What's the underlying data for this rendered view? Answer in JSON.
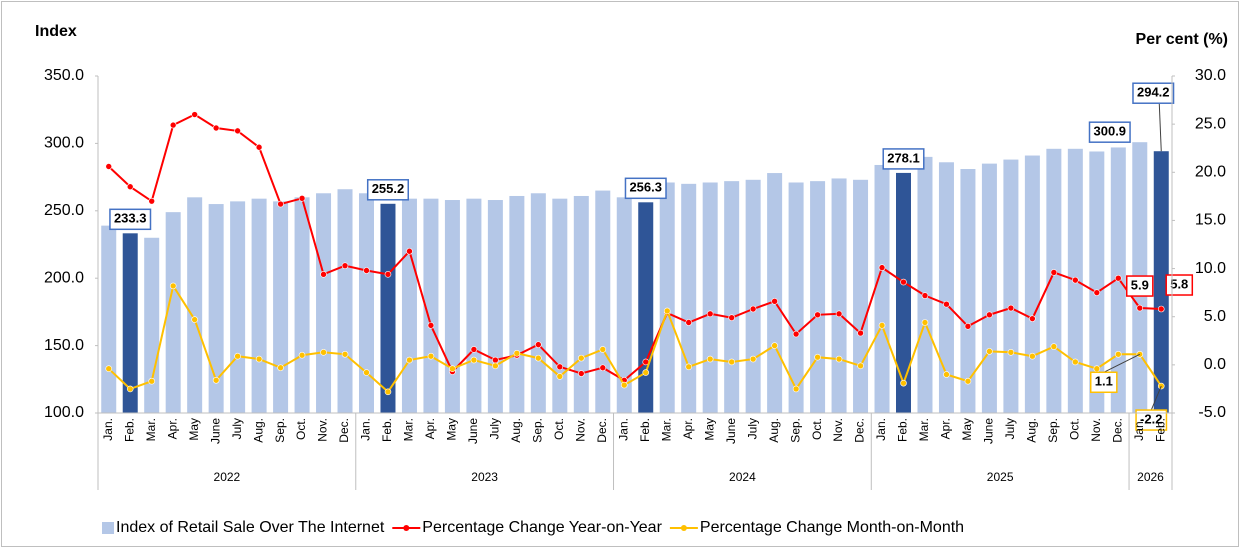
{
  "chart_data": {
    "type": "bar_line",
    "ylabel": "Index",
    "y2label": "Per cent (%)",
    "categories": [
      "Jan.",
      "Feb.",
      "Mar.",
      "Apr.",
      "May",
      "June",
      "July",
      "Aug.",
      "Sep.",
      "Oct.",
      "Nov.",
      "Dec.",
      "Jan.",
      "Feb.",
      "Mar.",
      "Apr.",
      "May",
      "June",
      "July",
      "Aug.",
      "Sep.",
      "Oct.",
      "Nov.",
      "Dec.",
      "Jan.",
      "Feb.",
      "Mar.",
      "Apr.",
      "May",
      "June",
      "July",
      "Aug.",
      "Sep.",
      "Oct.",
      "Nov.",
      "Dec.",
      "Jan.",
      "Feb.",
      "Mar.",
      "Apr.",
      "May",
      "June",
      "July",
      "Aug.",
      "Sep.",
      "Oct.",
      "Nov.",
      "Dec.",
      "Jan.",
      "Feb."
    ],
    "x_groups": [
      {
        "label": "2022",
        "size": 12
      },
      {
        "label": "2023",
        "size": 12
      },
      {
        "label": "2024",
        "size": 12
      },
      {
        "label": "2025",
        "size": 12
      },
      {
        "label": "2026",
        "size": 2
      }
    ],
    "ylim": [
      100,
      350
    ],
    "yticks": [
      {
        "value": 100,
        "label": "100.0"
      },
      {
        "value": 150,
        "label": "150.0"
      },
      {
        "value": 200,
        "label": "200.0"
      },
      {
        "value": 250,
        "label": "250.0"
      },
      {
        "value": 300,
        "label": "300.0"
      },
      {
        "value": 350,
        "label": "350.0"
      }
    ],
    "y2lim": [
      -5,
      30
    ],
    "y2ticks": [
      {
        "value": -5,
        "label": "-5.0"
      },
      {
        "value": 0,
        "label": "0.0"
      },
      {
        "value": 5,
        "label": "5.0"
      },
      {
        "value": 10,
        "label": "10.0"
      },
      {
        "value": 15,
        "label": "15.0"
      },
      {
        "value": 20,
        "label": "20.0"
      },
      {
        "value": 25,
        "label": "25.0"
      },
      {
        "value": 30,
        "label": "30.0"
      }
    ],
    "legend": "bottom",
    "series": [
      {
        "name": "Index of Retail Sale Over The Internet",
        "type": "bar",
        "color": "#b4c7e7",
        "highlight_color": "#2f5597",
        "values": [
          239,
          233.3,
          230,
          249,
          260,
          255,
          257,
          259,
          257,
          260,
          263,
          266,
          263,
          255.2,
          259,
          259,
          258,
          259,
          258,
          261,
          263,
          259,
          261,
          265,
          260,
          256.3,
          271,
          270,
          271,
          272,
          273,
          278,
          271,
          272,
          274,
          273,
          284,
          278.1,
          290,
          286,
          281,
          285,
          288,
          291,
          296,
          296,
          294,
          297,
          300.9,
          294.2
        ],
        "highlighted": [
          false,
          true,
          false,
          false,
          false,
          false,
          false,
          false,
          false,
          false,
          false,
          false,
          false,
          true,
          false,
          false,
          false,
          false,
          false,
          false,
          false,
          false,
          false,
          false,
          false,
          true,
          false,
          false,
          false,
          false,
          false,
          false,
          false,
          false,
          false,
          false,
          false,
          true,
          false,
          false,
          false,
          false,
          false,
          false,
          false,
          false,
          false,
          false,
          false,
          true
        ],
        "value_labels": [
          null,
          "233.3",
          null,
          null,
          null,
          null,
          null,
          null,
          null,
          null,
          null,
          null,
          null,
          "255.2",
          null,
          null,
          null,
          null,
          null,
          null,
          null,
          null,
          null,
          null,
          null,
          "256.3",
          null,
          null,
          null,
          null,
          null,
          null,
          null,
          null,
          null,
          null,
          null,
          "278.1",
          null,
          null,
          null,
          null,
          null,
          null,
          null,
          null,
          null,
          null,
          "300.9",
          "294.2"
        ]
      },
      {
        "name": "Percentage Change Year-on-Year",
        "type": "line",
        "axis": "y2",
        "color": "#ff0000",
        "values": [
          20.6,
          18.5,
          17.0,
          24.9,
          26.0,
          24.6,
          24.3,
          22.6,
          16.7,
          17.3,
          9.4,
          10.3,
          9.8,
          9.4,
          11.8,
          4.1,
          -0.7,
          1.6,
          0.5,
          1.0,
          2.1,
          -0.2,
          -0.9,
          -0.3,
          -1.6,
          0.3,
          5.4,
          4.4,
          5.3,
          4.9,
          5.8,
          6.6,
          3.2,
          5.2,
          5.3,
          3.3,
          10.1,
          8.6,
          7.2,
          6.3,
          4.0,
          5.2,
          5.9,
          4.8,
          9.6,
          8.8,
          7.5,
          9.0,
          5.9,
          5.8
        ],
        "value_labels": [
          null,
          null,
          null,
          null,
          null,
          null,
          null,
          null,
          null,
          null,
          null,
          null,
          null,
          null,
          null,
          null,
          null,
          null,
          null,
          null,
          null,
          null,
          null,
          null,
          null,
          null,
          null,
          null,
          null,
          null,
          null,
          null,
          null,
          null,
          null,
          null,
          null,
          null,
          null,
          null,
          null,
          null,
          null,
          null,
          null,
          null,
          null,
          null,
          "5.9",
          "5.8"
        ]
      },
      {
        "name": "Percentage Change Month-on-Month",
        "type": "line",
        "axis": "y2",
        "color": "#ffc000",
        "values": [
          -0.4,
          -2.5,
          -1.7,
          8.2,
          4.7,
          -1.6,
          0.9,
          0.6,
          -0.3,
          1.0,
          1.3,
          1.1,
          -0.8,
          -2.8,
          0.5,
          0.9,
          -0.4,
          0.5,
          -0.1,
          1.2,
          0.7,
          -1.2,
          0.7,
          1.6,
          -2.1,
          -0.8,
          5.6,
          -0.2,
          0.6,
          0.3,
          0.6,
          2.0,
          -2.5,
          0.8,
          0.6,
          -0.1,
          4.1,
          -1.9,
          4.4,
          -1.0,
          -1.7,
          1.4,
          1.3,
          0.9,
          1.9,
          0.3,
          -0.4,
          1.1,
          1.1,
          -2.2
        ],
        "value_labels": [
          null,
          null,
          null,
          null,
          null,
          null,
          null,
          null,
          null,
          null,
          null,
          null,
          null,
          null,
          null,
          null,
          null,
          null,
          null,
          null,
          null,
          null,
          null,
          null,
          null,
          null,
          null,
          null,
          null,
          null,
          null,
          null,
          null,
          null,
          null,
          null,
          null,
          null,
          null,
          null,
          null,
          null,
          null,
          null,
          null,
          null,
          null,
          null,
          "1.1",
          "-2.2"
        ]
      }
    ]
  }
}
